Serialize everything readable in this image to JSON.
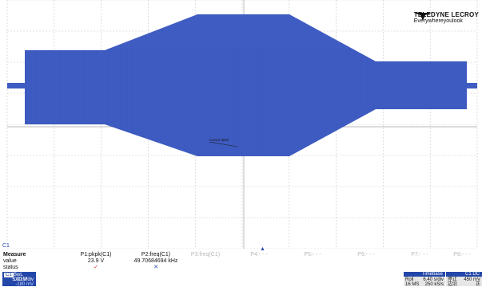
{
  "brand": {
    "name": "TELEDYNE LECROY",
    "tagline": "Everywhereyoulook"
  },
  "colors": {
    "trace": "#3f5cc2",
    "grid": "#c8c8c8",
    "channel": "#2347a8",
    "ok": "#e03030",
    "fail": "#2a48b0"
  },
  "waveform": {
    "label": "Cursor label",
    "trigger_marker": "C1",
    "pointer_marker": "▲"
  },
  "measure": {
    "row_labels": {
      "header": "Measure",
      "value": "value",
      "status": "status"
    },
    "params": [
      {
        "name": "P1:pkpk(C1)",
        "value": "23.9 V",
        "status": "✓",
        "status_kind": "ok"
      },
      {
        "name": "P2:freq(C1)",
        "value": "49.70684694 kHz",
        "status": "✕",
        "status_kind": "fail"
      },
      {
        "name": "P3:freq(C1)",
        "value": "",
        "status": ""
      },
      {
        "name": "P4:- - -",
        "value": "",
        "status": ""
      },
      {
        "name": "P5:- - -",
        "value": "",
        "status": ""
      },
      {
        "name": "P6:- - -",
        "value": "",
        "status": ""
      },
      {
        "name": "P7:- - -",
        "value": "",
        "status": ""
      },
      {
        "name": "P8:- - -",
        "value": "",
        "status": ""
      }
    ]
  },
  "channel": {
    "tag": "C1",
    "mode": "BwL DC1M",
    "volts_div": "5.00 V/div",
    "offset": "-180 mV"
  },
  "timebase": {
    "header": "Timebase",
    "row1_label": "Roll",
    "row1_value": "6.40 s/div",
    "row2_label": "16 MS",
    "row2_value": "250 kS/s"
  },
  "trigger": {
    "header": "C1 DC",
    "row1_label": "停止",
    "row1_value": "450 mV",
    "row2_label": "边沿",
    "row2_value": "正"
  }
}
